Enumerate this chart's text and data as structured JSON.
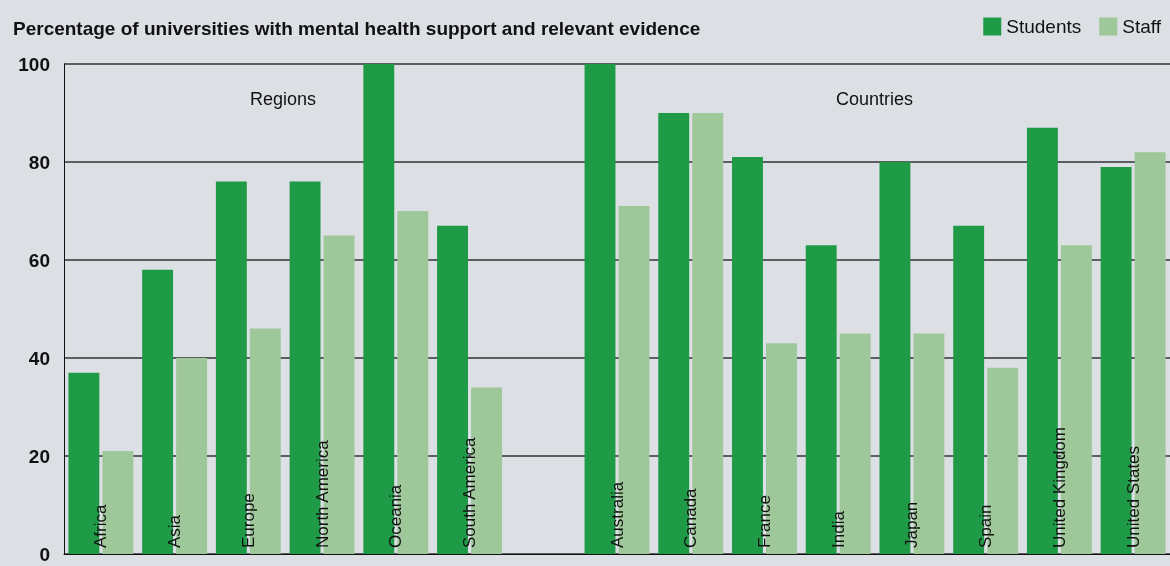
{
  "chart_data": {
    "type": "bar",
    "title": "Percentage of universities with mental health support and relevant evidence",
    "categories": [
      "Africa",
      "Asia",
      "Europe",
      "North America",
      "Oceania",
      "South America",
      null,
      "Australia",
      "Canada",
      "France",
      "India",
      "Japan",
      "Spain",
      "United Kingdom",
      "United States"
    ],
    "series": [
      {
        "name": "Students",
        "color": "#1f9a47",
        "values": [
          37,
          58,
          76,
          76,
          100,
          67,
          null,
          100,
          90,
          81,
          63,
          80,
          67,
          87,
          79
        ]
      },
      {
        "name": "Staff",
        "color": "#9ec79a",
        "values": [
          21,
          40,
          46,
          65,
          70,
          34,
          null,
          71,
          90,
          43,
          45,
          45,
          38,
          63,
          82
        ]
      }
    ],
    "annotations": [
      "Regions",
      "Countries"
    ],
    "ylim": [
      0,
      100
    ],
    "yticks": [
      0,
      20,
      40,
      60,
      80,
      100
    ],
    "grid": "y",
    "legend": "top right"
  }
}
